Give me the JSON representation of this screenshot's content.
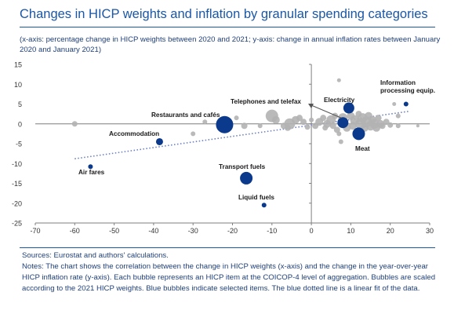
{
  "title": "Changes in HICP weights and inflation by granular spending categories",
  "subtitle": "(x-axis: percentage change in HICP weights between 2020 and 2021; y-axis: change in annual inflation rates between January 2020 and January 2021)",
  "sources": "Sources: Eurostat and authors' calculations.",
  "notes": "Notes: The chart shows the correlation between the change in HICP weights (x-axis) and the change in the year-over-year HICP inflation rate (y-axis). Each bubble represents an HICP item at the COICOP-4 level of aggregation. Bubbles are scaled according to the 2021 HICP weights. Blue bubbles indicate selected items. The blue dotted line is a linear fit of the data.",
  "colors": {
    "title": "#1a57a6",
    "highlight": "#0b3a8c",
    "other": "#b3b3b3",
    "fit": "#6b7fc4"
  },
  "chart_data": {
    "type": "scatter",
    "xlim": [
      -70,
      30
    ],
    "ylim": [
      -25,
      15
    ],
    "xticks": [
      -70,
      -60,
      -50,
      -40,
      -30,
      -20,
      -10,
      0,
      10,
      20,
      30
    ],
    "yticks": [
      -25,
      -20,
      -15,
      -10,
      -5,
      0,
      5,
      10,
      15
    ],
    "grid": false,
    "highlighted": [
      {
        "label": "Information processing equip.",
        "x": 24,
        "y": 5,
        "size": 3
      },
      {
        "label": "Electricity",
        "x": 9.5,
        "y": 4,
        "size": 7
      },
      {
        "label": "Telephones and telefax",
        "x": 8,
        "y": 0.3,
        "size": 7
      },
      {
        "label": "Meat",
        "x": 12,
        "y": -2.5,
        "size": 8
      },
      {
        "label": "Restaurants and cafés",
        "x": -22,
        "y": -0.2,
        "size": 11
      },
      {
        "label": "Accommodation",
        "x": -38.5,
        "y": -4.5,
        "size": 4.5
      },
      {
        "label": "Air fares",
        "x": -56,
        "y": -10.8,
        "size": 3
      },
      {
        "label": "Transport fuels",
        "x": -16.5,
        "y": -13.7,
        "size": 8
      },
      {
        "label": "Liquid fuels",
        "x": -12,
        "y": -20.5,
        "size": 3
      }
    ],
    "others": [
      {
        "x": -60,
        "y": 0,
        "size": 3.5
      },
      {
        "x": -30,
        "y": -2.5,
        "size": 3
      },
      {
        "x": -27,
        "y": 0.5,
        "size": 3
      },
      {
        "x": -19,
        "y": 1.5,
        "size": 3
      },
      {
        "x": -17,
        "y": -0.5,
        "size": 4
      },
      {
        "x": -13,
        "y": -0.5,
        "size": 3
      },
      {
        "x": -10,
        "y": 2,
        "size": 8
      },
      {
        "x": -9,
        "y": 1,
        "size": 5
      },
      {
        "x": -7,
        "y": -0.5,
        "size": 4
      },
      {
        "x": -6,
        "y": -1,
        "size": 4
      },
      {
        "x": -5.5,
        "y": 0,
        "size": 7
      },
      {
        "x": -4,
        "y": 1,
        "size": 5
      },
      {
        "x": -3,
        "y": 1.5,
        "size": 4
      },
      {
        "x": -2,
        "y": 0.5,
        "size": 4
      },
      {
        "x": -1,
        "y": -0.8,
        "size": 3.5
      },
      {
        "x": 0,
        "y": 1,
        "size": 3
      },
      {
        "x": 1,
        "y": -0.5,
        "size": 4
      },
      {
        "x": 2,
        "y": 0.5,
        "size": 5
      },
      {
        "x": 3,
        "y": 1.5,
        "size": 4
      },
      {
        "x": 3.5,
        "y": -1,
        "size": 3.5
      },
      {
        "x": 4,
        "y": 0,
        "size": 5
      },
      {
        "x": 5,
        "y": 1,
        "size": 6
      },
      {
        "x": 5.5,
        "y": -0.5,
        "size": 4
      },
      {
        "x": 6,
        "y": 2,
        "size": 4
      },
      {
        "x": 6.5,
        "y": -1.5,
        "size": 4
      },
      {
        "x": 7,
        "y": 11,
        "size": 2.5
      },
      {
        "x": 7,
        "y": -2.5,
        "size": 3
      },
      {
        "x": 7.5,
        "y": -4.5,
        "size": 3
      },
      {
        "x": 8,
        "y": 1.5,
        "size": 6
      },
      {
        "x": 9,
        "y": -1,
        "size": 5
      },
      {
        "x": 10,
        "y": 2,
        "size": 5
      },
      {
        "x": 10.5,
        "y": -0.5,
        "size": 5
      },
      {
        "x": 11,
        "y": 1,
        "size": 6
      },
      {
        "x": 12,
        "y": 2.5,
        "size": 4
      },
      {
        "x": 12.5,
        "y": 0,
        "size": 7
      },
      {
        "x": 13,
        "y": 1.5,
        "size": 6
      },
      {
        "x": 13.5,
        "y": -1,
        "size": 5
      },
      {
        "x": 14,
        "y": 0.5,
        "size": 7
      },
      {
        "x": 14.5,
        "y": 2,
        "size": 5
      },
      {
        "x": 15,
        "y": -0.5,
        "size": 6
      },
      {
        "x": 15.5,
        "y": 1,
        "size": 5
      },
      {
        "x": 16,
        "y": 0,
        "size": 6
      },
      {
        "x": 16.5,
        "y": -1,
        "size": 5
      },
      {
        "x": 17,
        "y": 1.5,
        "size": 4
      },
      {
        "x": 17.5,
        "y": 0,
        "size": 5
      },
      {
        "x": 18,
        "y": -0.5,
        "size": 4
      },
      {
        "x": 19,
        "y": 0.5,
        "size": 4
      },
      {
        "x": 20,
        "y": -0.3,
        "size": 3.5
      },
      {
        "x": 21,
        "y": 5,
        "size": 2.5
      },
      {
        "x": 22,
        "y": 2,
        "size": 3
      },
      {
        "x": 22,
        "y": -0.5,
        "size": 3
      },
      {
        "x": 27,
        "y": -0.5,
        "size": 2
      }
    ],
    "fit": {
      "x": [
        -60,
        25
      ],
      "y": [
        -8.8,
        3.2
      ]
    }
  }
}
